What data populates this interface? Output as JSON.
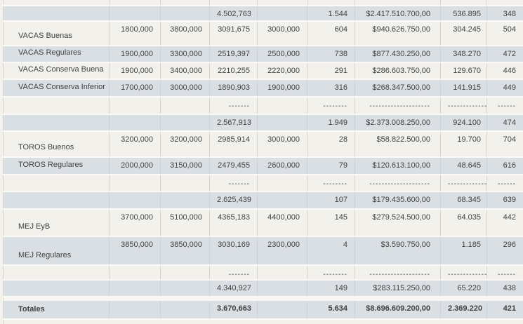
{
  "colors": {
    "row_cream": "#f2f1ec",
    "row_blue_gray": "#dadfe4",
    "separator": "#fbfaf7",
    "border": "#d6d4cf",
    "text": "#3f4245"
  },
  "table": {
    "rows": [
      {
        "kind": "partial",
        "bg": "cream",
        "height": 7,
        "cells": [
          "",
          "",
          "",
          "",
          "",
          "",
          "",
          "",
          ""
        ]
      },
      {
        "kind": "subtotal",
        "bg": "blue",
        "height": 22,
        "cells": [
          "",
          "",
          "",
          "4.502,763",
          "",
          "1.544",
          "$2.417.510.700,00",
          "536.895",
          "348"
        ]
      },
      {
        "kind": "data",
        "bg": "cream",
        "height": 35,
        "cells": [
          "VACAS Buenas",
          "1800,000",
          "3800,000",
          "3091,675",
          "3000,000",
          "604",
          "$940.626.750,00",
          "304.245",
          "504"
        ]
      },
      {
        "kind": "data",
        "bg": "blue",
        "height": 24,
        "cells": [
          "VACAS Regulares",
          "1900,000",
          "3300,000",
          "2519,397",
          "2500,000",
          "738",
          "$877.430.250,00",
          "348.270",
          "472"
        ]
      },
      {
        "kind": "data",
        "bg": "cream",
        "height": 24,
        "cells": [
          "VACAS Conserva Buena",
          "1900,000",
          "3400,000",
          "2210,255",
          "2220,000",
          "291",
          "$286.603.750,00",
          "129.670",
          "446"
        ]
      },
      {
        "kind": "data",
        "bg": "blue",
        "height": 25,
        "cells": [
          "VACAS Conserva Inferior",
          "1700,000",
          "3000,000",
          "1890,903",
          "1900,000",
          "316",
          "$268.347.500,00",
          "141.915",
          "449"
        ]
      },
      {
        "kind": "dashes",
        "bg": "cream",
        "height": 25,
        "cells": [
          "",
          "",
          "",
          "-------",
          "",
          "--------",
          "--------------------",
          "--------------",
          "------"
        ]
      },
      {
        "kind": "subtotal",
        "bg": "blue",
        "height": 24,
        "cells": [
          "",
          "",
          "",
          "2.567,913",
          "",
          "1.949",
          "$2.373.008.250,00",
          "924.100",
          "474"
        ]
      },
      {
        "kind": "data",
        "bg": "cream",
        "height": 37,
        "cells": [
          "TOROS Buenos",
          "3200,000",
          "3200,000",
          "2985,914",
          "3000,000",
          "28",
          "$58.822.500,00",
          "19.700",
          "704"
        ]
      },
      {
        "kind": "data",
        "bg": "blue",
        "height": 25,
        "cells": [
          "TOROS Regulares",
          "2000,000",
          "3150,000",
          "2479,455",
          "2600,000",
          "79",
          "$120.613.100,00",
          "48.645",
          "616"
        ]
      },
      {
        "kind": "dashes",
        "bg": "cream",
        "height": 24,
        "cells": [
          "",
          "",
          "",
          "-------",
          "",
          "--------",
          "--------------------",
          "--------------",
          "------"
        ]
      },
      {
        "kind": "subtotal",
        "bg": "blue",
        "height": 25,
        "cells": [
          "",
          "",
          "",
          "2.625,439",
          "",
          "107",
          "$179.435.600,00",
          "68.345",
          "639"
        ]
      },
      {
        "kind": "data",
        "bg": "cream",
        "height": 39,
        "cells": [
          "MEJ EyB",
          "3700,000",
          "5100,000",
          "4365,183",
          "4400,000",
          "145",
          "$279.524.500,00",
          "64.035",
          "442"
        ]
      },
      {
        "kind": "data",
        "bg": "blue",
        "height": 41,
        "cells": [
          "MEJ Regulares",
          "3850,000",
          "3850,000",
          "3030,169",
          "2300,000",
          "4",
          "$3.590.750,00",
          "1.185",
          "296"
        ]
      },
      {
        "kind": "dashes",
        "bg": "cream",
        "height": 21,
        "cells": [
          "",
          "",
          "",
          "-------",
          "",
          "--------",
          "--------------------",
          "--------------",
          "------"
        ]
      },
      {
        "kind": "subtotal",
        "bg": "blue",
        "height": 24,
        "cells": [
          "",
          "",
          "",
          "4.340,927",
          "",
          "149",
          "$283.115.250,00",
          "65.220",
          "438"
        ]
      },
      {
        "kind": "spacer",
        "bg": "none",
        "height": 6,
        "cells": [
          ""
        ]
      },
      {
        "kind": "total",
        "bg": "blue",
        "height": 26,
        "cells": [
          "Totales",
          "",
          "",
          "3.670,663",
          "",
          "5.634",
          "$8.696.609.200,00",
          "2.369.220",
          "421"
        ]
      },
      {
        "kind": "footer",
        "bg": "cream",
        "height": 7,
        "cells": [
          ""
        ]
      }
    ]
  }
}
